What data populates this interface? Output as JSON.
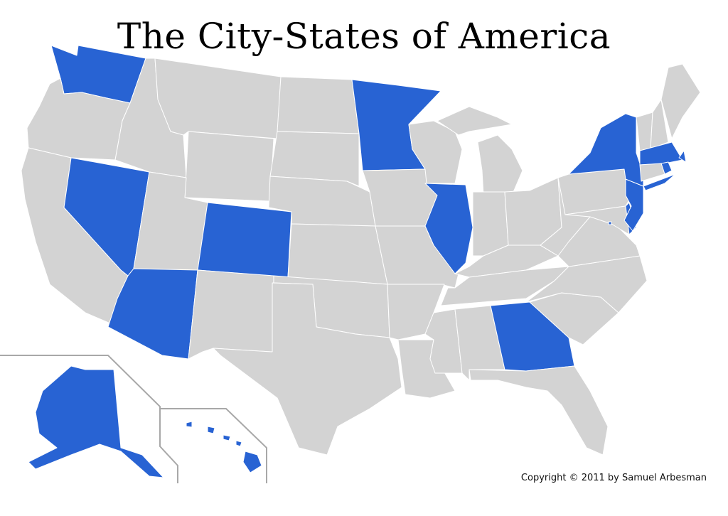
{
  "title": "The City-States of America",
  "copyright": "Copyright © 2011 by Samuel Arbesman",
  "colors": {
    "highlight": "#2863d3",
    "default": "#d3d3d3",
    "inset_border": "#a8a8a8",
    "background": "#ffffff"
  },
  "highlighted_states": [
    "WA",
    "NV",
    "AZ",
    "CO",
    "MN",
    "IL",
    "NY",
    "NJ",
    "DE",
    "MA",
    "RI",
    "GA",
    "DC",
    "AK",
    "HI"
  ],
  "states": [
    "WA",
    "OR",
    "CA",
    "NV",
    "ID",
    "MT",
    "WY",
    "UT",
    "CO",
    "AZ",
    "NM",
    "ND",
    "SD",
    "NE",
    "KS",
    "OK",
    "TX",
    "MN",
    "IA",
    "MO",
    "AR",
    "LA",
    "WI",
    "IL",
    "MI",
    "IN",
    "OH",
    "KY",
    "TN",
    "MS",
    "AL",
    "GA",
    "FL",
    "SC",
    "NC",
    "VA",
    "WV",
    "PA",
    "MD",
    "DE",
    "NJ",
    "NY",
    "VT",
    "NH",
    "ME",
    "MA",
    "RI",
    "CT",
    "DC",
    "AK",
    "HI"
  ]
}
